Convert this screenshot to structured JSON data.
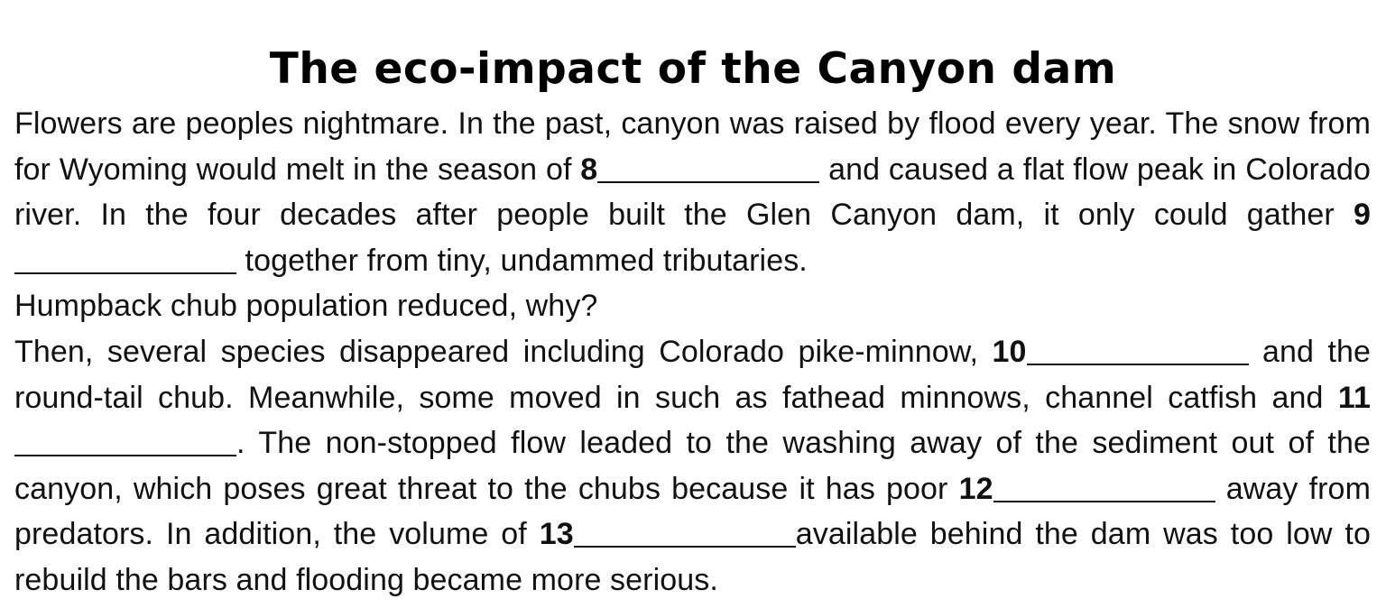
{
  "title": "The eco-impact of the Canyon dam",
  "paragraph1": {
    "t1": "Flowers are peoples nightmare. In the past, canyon was raised by flood every year. The snow from for Wyoming would melt in the season of ",
    "n8": "8",
    "t2": " and caused a flat flow peak in Colorado river. In the four decades after people built the Glen Canyon dam, it only could gather ",
    "n9": "9",
    "t3": " together from tiny, undammed tributaries."
  },
  "question": "Humpback chub population reduced, why?",
  "paragraph2": {
    "t1": "Then, several species disappeared including Colorado pike-minnow, ",
    "n10": "10",
    "t2": " and the round-tail chub. Meanwhile, some moved in such as fathead minnows, channel catfish and ",
    "n11": "11",
    "t3": ". The non-stopped flow leaded to the washing away of the sediment out of the canyon, which poses great threat to the chubs because it has poor ",
    "n12": "12",
    "t4": " away from predators. In addition, the volume of ",
    "n13": "13",
    "t5": "available behind the dam was too low to rebuild the bars and flooding became more serious."
  }
}
